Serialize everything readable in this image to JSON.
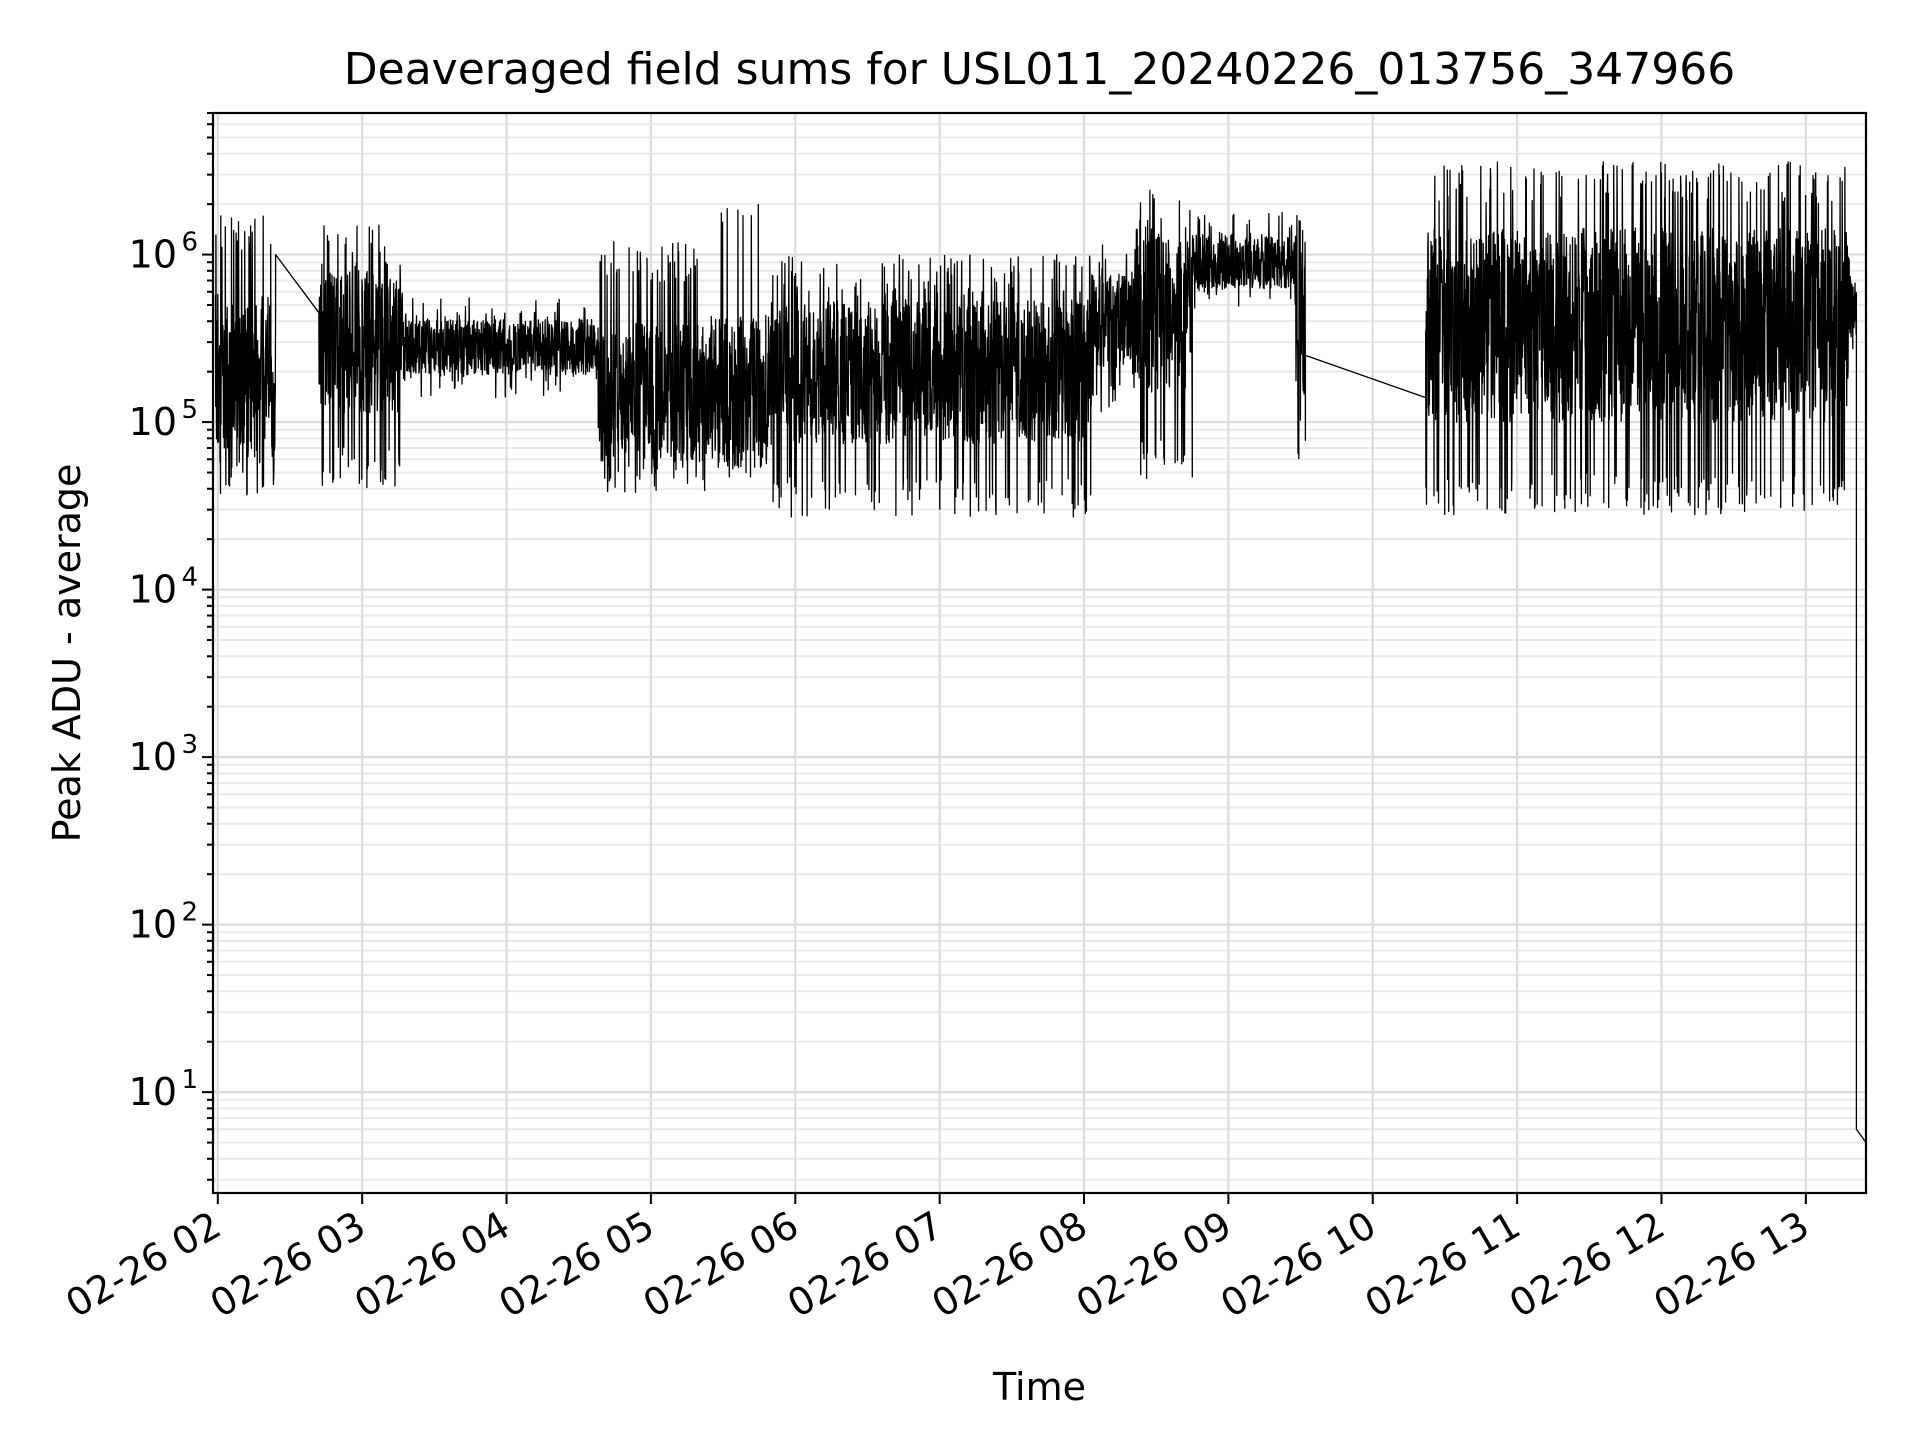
{
  "chart_data": {
    "type": "line",
    "title": "Deaveraged field sums for USL011_20240226_013756_347966",
    "xlabel": "Time",
    "ylabel": "Peak ADU - average",
    "x_axis": "date",
    "xlim": [
      "2024-02-26 01:58",
      "2024-02-26 13:25"
    ],
    "yscale": "log",
    "ylim": [
      2.5,
      7000000
    ],
    "grid": "on (major and minor)",
    "x_ticks": [
      {
        "x": "2024-02-26 02:00",
        "label": "02-26 02"
      },
      {
        "x": "2024-02-26 03:00",
        "label": "02-26 03"
      },
      {
        "x": "2024-02-26 04:00",
        "label": "02-26 04"
      },
      {
        "x": "2024-02-26 05:00",
        "label": "02-26 05"
      },
      {
        "x": "2024-02-26 06:00",
        "label": "02-26 06"
      },
      {
        "x": "2024-02-26 07:00",
        "label": "02-26 07"
      },
      {
        "x": "2024-02-26 08:00",
        "label": "02-26 08"
      },
      {
        "x": "2024-02-26 09:00",
        "label": "02-26 09"
      },
      {
        "x": "2024-02-26 10:00",
        "label": "02-26 10"
      },
      {
        "x": "2024-02-26 11:00",
        "label": "02-26 11"
      },
      {
        "x": "2024-02-26 12:00",
        "label": "02-26 12"
      },
      {
        "x": "2024-02-26 13:00",
        "label": "02-26 13"
      }
    ],
    "y_ticks": [
      {
        "value": 10,
        "base": "10",
        "exp": "1"
      },
      {
        "value": 100,
        "base": "10",
        "exp": "2"
      },
      {
        "value": 1000,
        "base": "10",
        "exp": "3"
      },
      {
        "value": 10000,
        "base": "10",
        "exp": "4"
      },
      {
        "value": 100000,
        "base": "10",
        "exp": "5"
      },
      {
        "value": 1000000,
        "base": "10",
        "exp": "6"
      }
    ],
    "series_color": "#000000",
    "segments": [
      {
        "start": "2024-02-26 01:59",
        "end": "2024-02-26 02:24",
        "low": 35000,
        "high": 1800000,
        "typical": 200000
      },
      {
        "start": "2024-02-26 02:24",
        "end": "2024-02-26 02:42",
        "low": 450000,
        "high": 1000000,
        "typical": 700000
      },
      {
        "start": "2024-02-26 02:42",
        "end": "2024-02-26 03:17",
        "low": 40000,
        "high": 1500000,
        "typical": 300000
      },
      {
        "start": "2024-02-26 03:17",
        "end": "2024-02-26 04:38",
        "low": 140000,
        "high": 560000,
        "typical": 280000
      },
      {
        "start": "2024-02-26 04:38",
        "end": "2024-02-26 05:25",
        "low": 38000,
        "high": 1200000,
        "typical": 150000
      },
      {
        "start": "2024-02-26 05:25",
        "end": "2024-02-26 05:50",
        "low": 45000,
        "high": 2200000,
        "typical": 150000
      },
      {
        "start": "2024-02-26 05:50",
        "end": "2024-02-26 08:03",
        "low": 27000,
        "high": 1000000,
        "typical": 200000
      },
      {
        "start": "2024-02-26 08:03",
        "end": "2024-02-26 08:20",
        "low": 110000,
        "high": 1150000,
        "typical": 400000
      },
      {
        "start": "2024-02-26 08:20",
        "end": "2024-02-26 08:45",
        "low": 45000,
        "high": 2500000,
        "typical": 450000
      },
      {
        "start": "2024-02-26 08:45",
        "end": "2024-02-26 09:28",
        "low": 480000,
        "high": 1800000,
        "typical": 900000
      },
      {
        "start": "2024-02-26 09:28",
        "end": "2024-02-26 09:32",
        "low": 60000,
        "high": 1800000,
        "typical": 350000
      },
      {
        "start": "2024-02-26 09:32",
        "end": "2024-02-26 10:22",
        "low": 140000,
        "high": 250000,
        "typical": 190000
      },
      {
        "start": "2024-02-26 10:22",
        "end": "2024-02-26 13:18",
        "low": 28000,
        "high": 3600000,
        "typical": 380000
      },
      {
        "start": "2024-02-26 13:18",
        "end": "2024-02-26 13:21",
        "low": 200000,
        "high": 1000000,
        "typical": 500000
      },
      {
        "start": "2024-02-26 13:21",
        "end": "2024-02-26 13:25",
        "low": 5,
        "high": 6,
        "typical": 5
      }
    ],
    "notes": []
  }
}
